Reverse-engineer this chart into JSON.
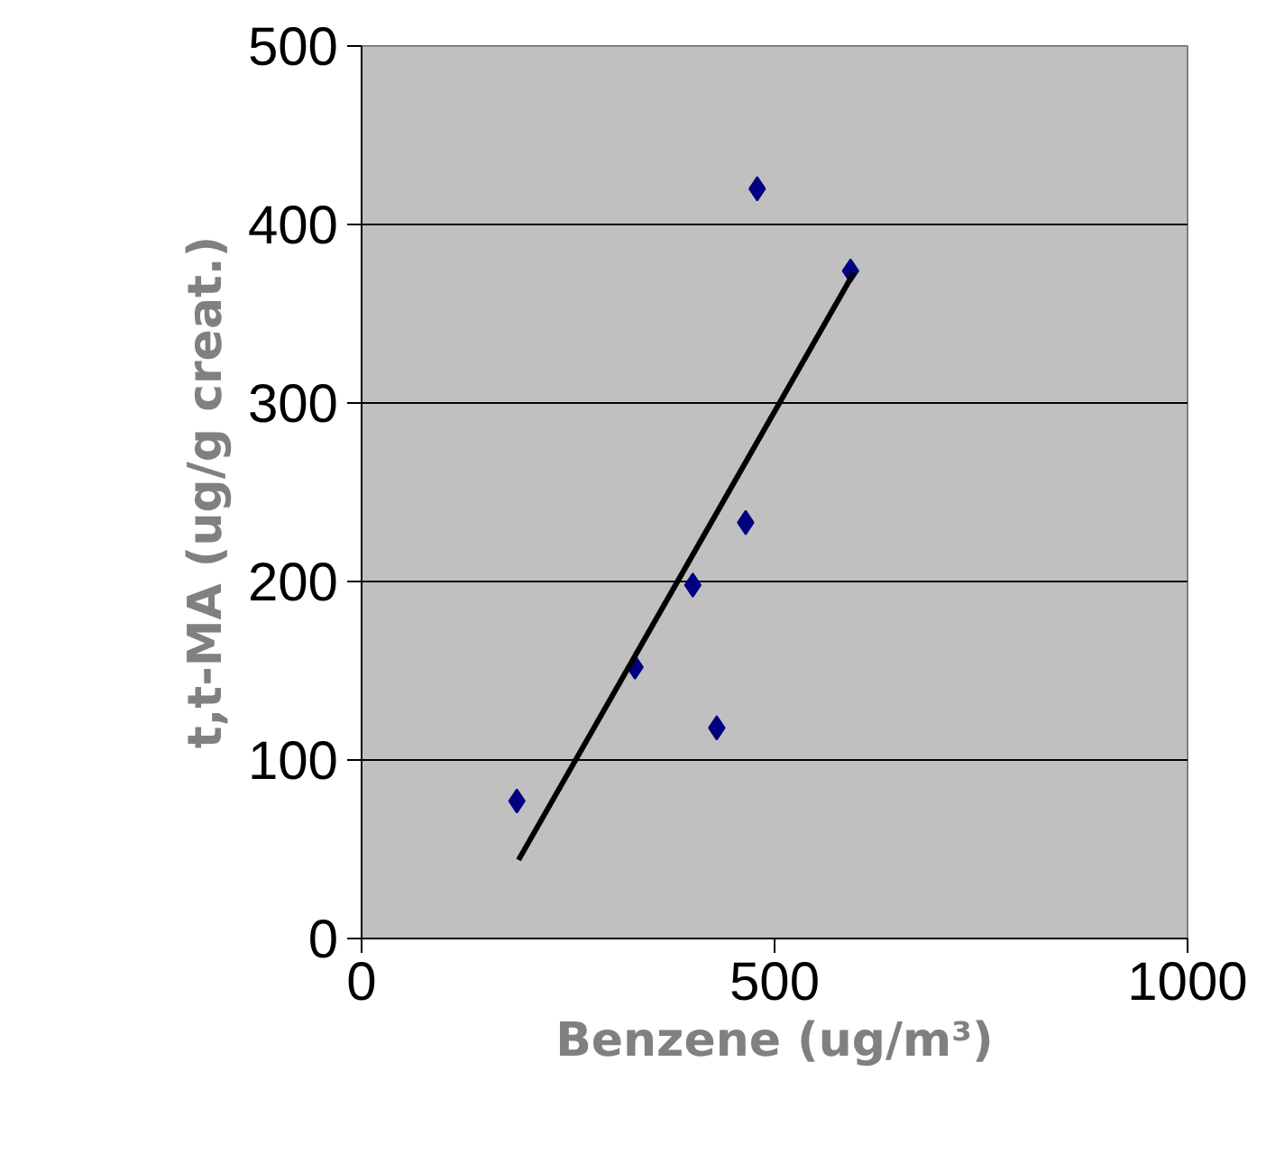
{
  "chart_data": {
    "type": "scatter",
    "xlabel": "Benzene (ug/m³)",
    "ylabel": "t,t-MA (ug/g creat.)",
    "xlim": [
      0,
      1000
    ],
    "ylim": [
      0,
      500
    ],
    "xticks": [
      0,
      500,
      1000
    ],
    "yticks": [
      0,
      100,
      200,
      300,
      400,
      500
    ],
    "grid": "y",
    "marker": "diamond",
    "series": [
      {
        "color": "#000080",
        "x": [
          188,
          331,
          401,
          430,
          465,
          479,
          592
        ],
        "values": [
          77,
          152,
          198,
          118,
          233,
          420,
          374
        ]
      },
      {
        "type": "line",
        "color": "#000000",
        "marker": "none",
        "x": [
          190,
          596
        ],
        "values": [
          44,
          373
        ]
      }
    ]
  }
}
